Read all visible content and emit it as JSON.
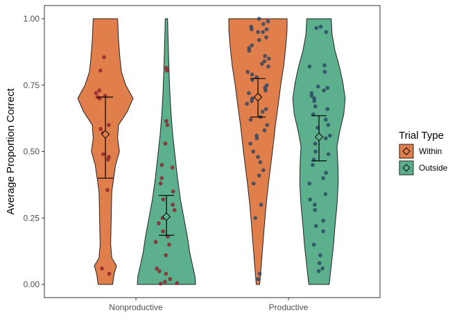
{
  "chart_data": {
    "type": "violin",
    "title": "",
    "xlabel": "",
    "ylabel": "Average Proportion Correct",
    "ylim": [
      0,
      1
    ],
    "yticks": [
      0,
      0.25,
      0.5,
      0.75,
      1
    ],
    "ytick_labels": [
      "0.00",
      "0.25",
      "0.50",
      "0.75",
      "1.00"
    ],
    "categories": [
      "Nonproductive",
      "Productive"
    ],
    "grid": false,
    "legend": {
      "title": "Trial Type",
      "position": "right",
      "entries": [
        {
          "label": "Within",
          "color": "#e07f4c"
        },
        {
          "label": "Outside",
          "color": "#5cb08e"
        }
      ]
    },
    "point_colors": {
      "Nonproductive": "#a3202a",
      "Productive": "#2b4c6e"
    },
    "groups": [
      {
        "category": "Nonproductive",
        "series": "Within",
        "mean": 0.565,
        "ci": [
          0.4,
          0.705
        ],
        "density": [
          [
            0.0,
            0.25
          ],
          [
            0.04,
            0.3
          ],
          [
            0.07,
            0.38
          ],
          [
            0.1,
            0.22
          ],
          [
            0.15,
            0.18
          ],
          [
            0.25,
            0.2
          ],
          [
            0.35,
            0.22
          ],
          [
            0.45,
            0.35
          ],
          [
            0.5,
            0.48
          ],
          [
            0.55,
            0.42
          ],
          [
            0.6,
            0.45
          ],
          [
            0.65,
            0.75
          ],
          [
            0.7,
            0.95
          ],
          [
            0.75,
            0.7
          ],
          [
            0.8,
            0.55
          ],
          [
            0.85,
            0.5
          ],
          [
            0.92,
            0.45
          ],
          [
            1.0,
            0.42
          ]
        ],
        "points": [
          0.855,
          0.805,
          0.73,
          0.72,
          0.71,
          0.705,
          0.7,
          0.6,
          0.585,
          0.57,
          0.49,
          0.48,
          0.47,
          0.355,
          0.06,
          0.04
        ]
      },
      {
        "category": "Nonproductive",
        "series": "Outside",
        "mean": 0.255,
        "ci": [
          0.185,
          0.335
        ],
        "density": [
          [
            0.0,
            1.0
          ],
          [
            0.03,
            0.98
          ],
          [
            0.07,
            0.9
          ],
          [
            0.12,
            0.8
          ],
          [
            0.18,
            0.72
          ],
          [
            0.25,
            0.6
          ],
          [
            0.32,
            0.48
          ],
          [
            0.4,
            0.38
          ],
          [
            0.48,
            0.3
          ],
          [
            0.56,
            0.22
          ],
          [
            0.64,
            0.16
          ],
          [
            0.72,
            0.12
          ],
          [
            0.8,
            0.09
          ],
          [
            0.88,
            0.07
          ],
          [
            0.95,
            0.05
          ],
          [
            1.0,
            0.04
          ]
        ],
        "points": [
          0.815,
          0.805,
          0.615,
          0.6,
          0.53,
          0.45,
          0.44,
          0.4,
          0.38,
          0.35,
          0.32,
          0.3,
          0.28,
          0.25,
          0.23,
          0.2,
          0.18,
          0.16,
          0.15,
          0.11,
          0.06,
          0.05,
          0.04,
          0.02,
          0.01,
          0.005,
          0.003
        ]
      },
      {
        "category": "Productive",
        "series": "Within",
        "mean": 0.705,
        "ci": [
          0.63,
          0.775
        ],
        "density": [
          [
            0.0,
            0.06
          ],
          [
            0.03,
            0.08
          ],
          [
            0.08,
            0.12
          ],
          [
            0.15,
            0.17
          ],
          [
            0.22,
            0.22
          ],
          [
            0.3,
            0.28
          ],
          [
            0.38,
            0.36
          ],
          [
            0.45,
            0.44
          ],
          [
            0.52,
            0.52
          ],
          [
            0.6,
            0.6
          ],
          [
            0.68,
            0.7
          ],
          [
            0.75,
            0.78
          ],
          [
            0.82,
            0.88
          ],
          [
            0.9,
            0.96
          ],
          [
            0.96,
            1.0
          ],
          [
            1.0,
            1.0
          ]
        ],
        "points": [
          1.0,
          0.99,
          0.98,
          0.97,
          0.96,
          0.96,
          0.95,
          0.95,
          0.93,
          0.92,
          0.9,
          0.89,
          0.88,
          0.86,
          0.85,
          0.84,
          0.83,
          0.82,
          0.8,
          0.79,
          0.78,
          0.77,
          0.75,
          0.74,
          0.73,
          0.72,
          0.71,
          0.7,
          0.69,
          0.68,
          0.66,
          0.65,
          0.63,
          0.62,
          0.6,
          0.58,
          0.56,
          0.55,
          0.53,
          0.5,
          0.48,
          0.46,
          0.43,
          0.41,
          0.38,
          0.3,
          0.25,
          0.04,
          0.02
        ]
      },
      {
        "category": "Productive",
        "series": "Outside",
        "mean": 0.555,
        "ci": [
          0.465,
          0.635
        ],
        "density": [
          [
            0.0,
            0.35
          ],
          [
            0.05,
            0.4
          ],
          [
            0.1,
            0.45
          ],
          [
            0.15,
            0.5
          ],
          [
            0.22,
            0.55
          ],
          [
            0.3,
            0.62
          ],
          [
            0.38,
            0.66
          ],
          [
            0.45,
            0.65
          ],
          [
            0.52,
            0.62
          ],
          [
            0.58,
            0.72
          ],
          [
            0.64,
            0.85
          ],
          [
            0.7,
            0.9
          ],
          [
            0.76,
            0.82
          ],
          [
            0.82,
            0.7
          ],
          [
            0.88,
            0.55
          ],
          [
            0.94,
            0.45
          ],
          [
            1.0,
            0.42
          ]
        ],
        "points": [
          0.97,
          0.965,
          0.95,
          0.825,
          0.82,
          0.8,
          0.745,
          0.74,
          0.73,
          0.72,
          0.71,
          0.7,
          0.69,
          0.67,
          0.66,
          0.64,
          0.62,
          0.6,
          0.59,
          0.56,
          0.55,
          0.53,
          0.5,
          0.49,
          0.47,
          0.45,
          0.42,
          0.4,
          0.38,
          0.34,
          0.32,
          0.3,
          0.28,
          0.24,
          0.22,
          0.2,
          0.15,
          0.11,
          0.08,
          0.06,
          0.05
        ]
      }
    ]
  }
}
